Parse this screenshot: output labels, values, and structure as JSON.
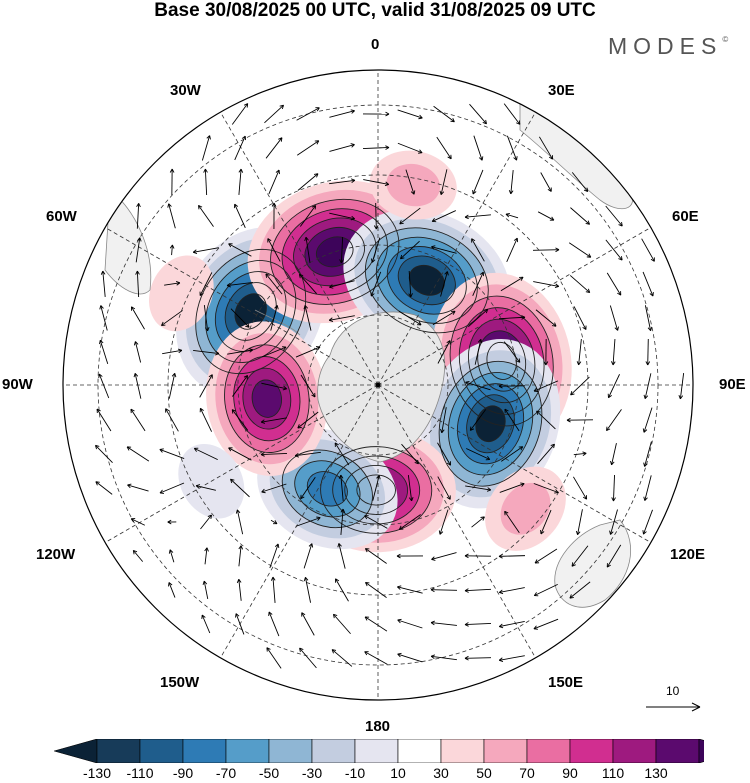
{
  "title": "Base 30/08/2025 00 UTC, valid 31/08/2025 09 UTC",
  "brand": "MODES",
  "brand_mark": "©",
  "longitude_labels": {
    "top": "0",
    "top_left": "30W",
    "top_right": "30E",
    "upper_left": "60W",
    "upper_right": "60E",
    "left": "90W",
    "right": "90E",
    "lower_left": "120W",
    "lower_right": "120E",
    "bottom_left": "150W",
    "bottom_right": "150E",
    "bottom": "180"
  },
  "reference_vector": {
    "label": "10",
    "magnitude": 10
  },
  "colorbar": {
    "ticks": [
      "-130",
      "-110",
      "-90",
      "-70",
      "-50",
      "-30",
      "-10",
      "10",
      "30",
      "50",
      "70",
      "90",
      "110",
      "130"
    ],
    "colors": [
      "#173b59",
      "#1f5d8c",
      "#2e7bb5",
      "#559dc9",
      "#8fb6d4",
      "#c3cde0",
      "#e5e5f0",
      "#ffffff",
      "#fbd7da",
      "#f5a8bd",
      "#ea6ea2",
      "#d12e90",
      "#9e1a7f",
      "#5b0a6e"
    ],
    "edge_left": "#0b2236",
    "edge_right": "#3d045a"
  },
  "anomaly_centers": [
    {
      "name": "neg-30w",
      "lon": -60,
      "lat_deg_from_pole": 42,
      "value": -135
    },
    {
      "name": "pos-0",
      "lon": -18,
      "lat_deg_from_pole": 40,
      "value": 135
    },
    {
      "name": "neg-30e",
      "lon": 25,
      "lat_deg_from_pole": 33,
      "value": -130
    },
    {
      "name": "pos-60e",
      "lon": 79,
      "lat_deg_from_pole": 36,
      "value": 135
    },
    {
      "name": "neg-105e",
      "lon": 109,
      "lat_deg_from_pole": 34,
      "value": -130
    },
    {
      "name": "pos-170w",
      "lon": -179,
      "lat_deg_from_pole": 30,
      "value": 115
    },
    {
      "name": "neg-140w",
      "lon": -154,
      "lat_deg_from_pole": 33,
      "value": -100
    },
    {
      "name": "pos-100w",
      "lon": -97,
      "lat_deg_from_pole": 32,
      "value": 110
    },
    {
      "name": "pos-135e",
      "lon": 130,
      "lat_deg_from_pole": 55,
      "value": 40
    },
    {
      "name": "pos-10e",
      "lon": 10,
      "lat_deg_from_pole": 58,
      "value": 35
    },
    {
      "name": "neg-60w-weak",
      "lon": -120,
      "lat_deg_from_pole": 55,
      "value": -25
    },
    {
      "name": "pos-70w-weak",
      "lon": -65,
      "lat_deg_from_pole": 62,
      "value": 25
    }
  ]
}
